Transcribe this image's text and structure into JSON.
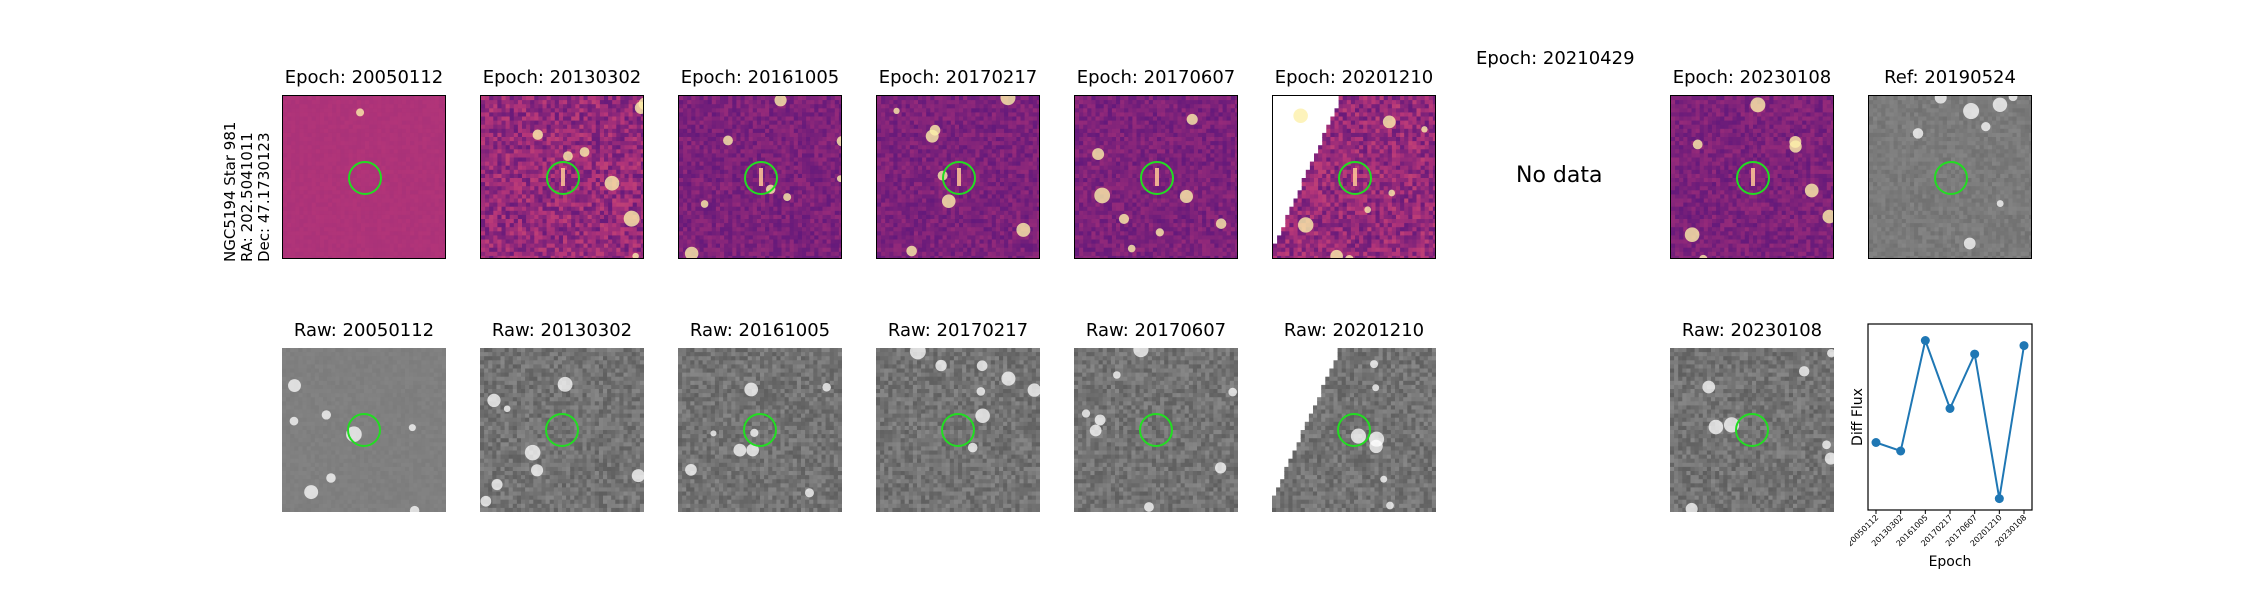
{
  "side_label": {
    "line1": "NGC5194 Star 981",
    "line2": "RA: 202.5041011",
    "line3": "Dec: 47.1730123"
  },
  "diff_row": [
    {
      "title": "Epoch: 20050112",
      "style": "flat",
      "seed": 3
    },
    {
      "title": "Epoch: 20130302",
      "style": "noisy",
      "seed": 11
    },
    {
      "title": "Epoch: 20161005",
      "style": "dark",
      "seed": 17
    },
    {
      "title": "Epoch: 20170217",
      "style": "dark",
      "seed": 23
    },
    {
      "title": "Epoch: 20170607",
      "style": "dark",
      "seed": 29
    },
    {
      "title": "Epoch: 20201210",
      "style": "noisy_edge",
      "seed": 31
    },
    {
      "title": "Epoch: 20210429",
      "no_data": true,
      "no_data_text": "No data"
    },
    {
      "title": "Epoch: 20230108",
      "style": "dark",
      "seed": 37
    },
    {
      "title": "Ref: 20190524",
      "style": "ref",
      "seed": 41
    }
  ],
  "raw_row": [
    {
      "title": "Raw: 20050112",
      "style": "rawflat",
      "seed": 5
    },
    {
      "title": "Raw: 20130302",
      "style": "raw",
      "seed": 13
    },
    {
      "title": "Raw: 20161005",
      "style": "raw",
      "seed": 19
    },
    {
      "title": "Raw: 20170217",
      "style": "raw",
      "seed": 25
    },
    {
      "title": "Raw: 20170607",
      "style": "raw",
      "seed": 27
    },
    {
      "title": "Raw: 20201210",
      "style": "raw_edge",
      "seed": 33
    },
    {
      "title": "Raw: 20230108",
      "style": "raw",
      "seed": 39
    }
  ],
  "colors": {
    "circle": "#22dd22",
    "line": "#1f77b4"
  },
  "chart_data": {
    "type": "line",
    "title": "",
    "xlabel": "Epoch",
    "ylabel": "Diff Flux",
    "categories": [
      "20050112",
      "20130302",
      "20161005",
      "20170217",
      "20170607",
      "20201210",
      "20230108"
    ],
    "values": [
      0.35,
      0.3,
      0.95,
      0.55,
      0.87,
      0.02,
      0.92
    ],
    "grid": false
  }
}
